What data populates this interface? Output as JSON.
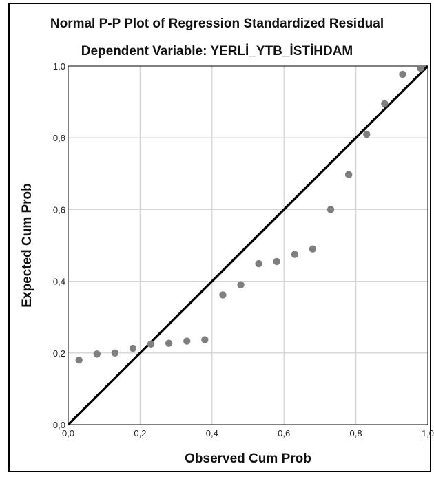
{
  "chart_data": {
    "type": "scatter",
    "title": "Normal P-P Plot of Regression Standardized Residual",
    "subtitle": "Dependent Variable: YERLİ_YTB_İSTİHDAM",
    "xlabel": "Observed Cum Prob",
    "ylabel": "Expected Cum Prob",
    "xlim": [
      0,
      1
    ],
    "ylim": [
      0,
      1
    ],
    "grid": true,
    "x_ticks": [
      "0,0",
      "0,2",
      "0,4",
      "0,6",
      "0,8",
      "1,0"
    ],
    "y_ticks": [
      "0,0",
      "0,2",
      "0,4",
      "0,6",
      "0,8",
      "1,0"
    ],
    "reference_line": {
      "from": [
        0,
        0
      ],
      "to": [
        1,
        1
      ],
      "color": "#000000"
    },
    "point_color": "#7f7f7f",
    "grid_color": "#d4d4d4",
    "points": [
      {
        "x": 0.03,
        "y": 0.18
      },
      {
        "x": 0.08,
        "y": 0.197
      },
      {
        "x": 0.13,
        "y": 0.2
      },
      {
        "x": 0.18,
        "y": 0.213
      },
      {
        "x": 0.23,
        "y": 0.225
      },
      {
        "x": 0.28,
        "y": 0.227
      },
      {
        "x": 0.33,
        "y": 0.233
      },
      {
        "x": 0.38,
        "y": 0.237
      },
      {
        "x": 0.43,
        "y": 0.362
      },
      {
        "x": 0.48,
        "y": 0.39
      },
      {
        "x": 0.53,
        "y": 0.449
      },
      {
        "x": 0.58,
        "y": 0.455
      },
      {
        "x": 0.63,
        "y": 0.475
      },
      {
        "x": 0.68,
        "y": 0.49
      },
      {
        "x": 0.73,
        "y": 0.6
      },
      {
        "x": 0.78,
        "y": 0.697
      },
      {
        "x": 0.83,
        "y": 0.81
      },
      {
        "x": 0.88,
        "y": 0.895
      },
      {
        "x": 0.93,
        "y": 0.977
      },
      {
        "x": 0.98,
        "y": 0.994
      }
    ]
  }
}
